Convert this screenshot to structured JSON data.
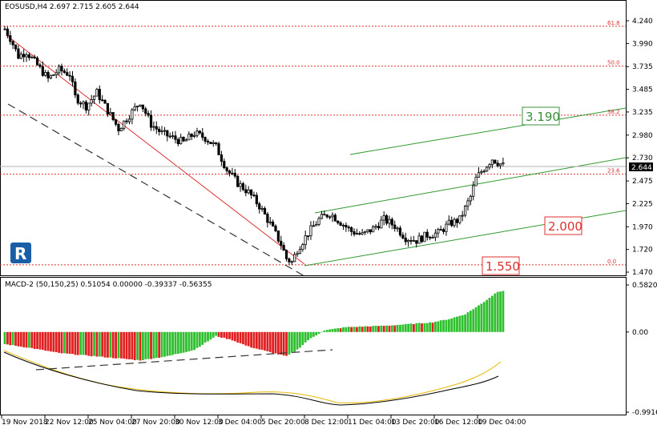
{
  "chart_data": [
    {
      "type": "candlestick",
      "symbol_header": "EOSUSD,H4  2.697 2.715 2.605 2.644",
      "last_price": "2.644",
      "ylim": [
        1.47,
        4.24
      ],
      "y_ticks": [
        "4.240",
        "3.990",
        "3.735",
        "3.485",
        "3.235",
        "2.980",
        "2.730",
        "2.475",
        "2.225",
        "1.970",
        "1.720",
        "1.470"
      ],
      "x_ticks": [
        "19 Nov 2018",
        "22 Nov 12:00",
        "25 Nov 04:00",
        "27 Nov 20:00",
        "30 Nov 12:00",
        "3 Dec 04:00",
        "5 Dec 20:00",
        "8 Dec 12:00",
        "11 Dec 04:00",
        "13 Dec 20:00",
        "16 Dec 12:00",
        "19 Dec 04:00"
      ],
      "price_path": [
        [
          0,
          4.15
        ],
        [
          2,
          4.05
        ],
        [
          5,
          3.85
        ],
        [
          8,
          3.9
        ],
        [
          12,
          3.75
        ],
        [
          16,
          3.6
        ],
        [
          20,
          3.7
        ],
        [
          24,
          3.65
        ],
        [
          26,
          3.4
        ],
        [
          30,
          3.3
        ],
        [
          34,
          3.45
        ],
        [
          38,
          3.25
        ],
        [
          42,
          3.05
        ],
        [
          46,
          3.2
        ],
        [
          50,
          3.35
        ],
        [
          54,
          3.1
        ],
        [
          58,
          3.0
        ],
        [
          62,
          2.95
        ],
        [
          66,
          2.9
        ],
        [
          70,
          3.0
        ],
        [
          74,
          2.95
        ],
        [
          78,
          2.85
        ],
        [
          82,
          2.6
        ],
        [
          86,
          2.45
        ],
        [
          90,
          2.35
        ],
        [
          94,
          2.2
        ],
        [
          98,
          2.0
        ],
        [
          102,
          1.78
        ],
        [
          104,
          1.62
        ],
        [
          106,
          1.58
        ],
        [
          108,
          1.72
        ],
        [
          112,
          1.9
        ],
        [
          116,
          2.05
        ],
        [
          120,
          2.12
        ],
        [
          124,
          2.02
        ],
        [
          128,
          1.92
        ],
        [
          132,
          1.88
        ],
        [
          136,
          1.95
        ],
        [
          140,
          2.05
        ],
        [
          144,
          1.98
        ],
        [
          148,
          1.85
        ],
        [
          152,
          1.82
        ],
        [
          156,
          1.88
        ],
        [
          160,
          1.9
        ],
        [
          164,
          2.0
        ],
        [
          168,
          2.05
        ],
        [
          172,
          2.3
        ],
        [
          174,
          2.5
        ],
        [
          176,
          2.58
        ],
        [
          178,
          2.65
        ],
        [
          180,
          2.72
        ],
        [
          182,
          2.68
        ],
        [
          184,
          2.644
        ]
      ],
      "fibonacci": [
        {
          "label": "61.8",
          "value": 4.18
        },
        {
          "label": "50.0",
          "value": 3.74
        },
        {
          "label": "38.2",
          "value": 3.2
        },
        {
          "label": "23.6",
          "value": 2.55
        },
        {
          "label": "0.0",
          "value": 1.55
        }
      ],
      "annotations": [
        {
          "text": "3.190",
          "color": "#3b8f3b"
        },
        {
          "text": "2.000",
          "color": "#e03030"
        },
        {
          "text": "1.550",
          "color": "#e03030"
        }
      ]
    },
    {
      "type": "histogram",
      "header": "MACD-2 (50,150,25) 0.51054 0.00000 -0.39337 -0.56355",
      "ylim": [
        -0.99169,
        0.58208
      ],
      "y_ticks": [
        "0.58208",
        "0.00",
        "-0.99169"
      ],
      "macd_path": [
        [
          0,
          -0.15
        ],
        [
          10,
          -0.2
        ],
        [
          20,
          -0.26
        ],
        [
          30,
          -0.29
        ],
        [
          40,
          -0.32
        ],
        [
          50,
          -0.35
        ],
        [
          60,
          -0.3
        ],
        [
          70,
          -0.22
        ],
        [
          78,
          -0.05
        ],
        [
          84,
          -0.1
        ],
        [
          90,
          -0.18
        ],
        [
          98,
          -0.25
        ],
        [
          104,
          -0.3
        ],
        [
          108,
          -0.22
        ],
        [
          112,
          -0.1
        ],
        [
          118,
          0.02
        ],
        [
          126,
          0.06
        ],
        [
          134,
          0.07
        ],
        [
          142,
          0.08
        ],
        [
          150,
          0.1
        ],
        [
          158,
          0.12
        ],
        [
          164,
          0.16
        ],
        [
          170,
          0.22
        ],
        [
          176,
          0.35
        ],
        [
          182,
          0.5
        ],
        [
          184,
          0.51
        ]
      ]
    }
  ],
  "logo": {
    "letter": "R"
  }
}
